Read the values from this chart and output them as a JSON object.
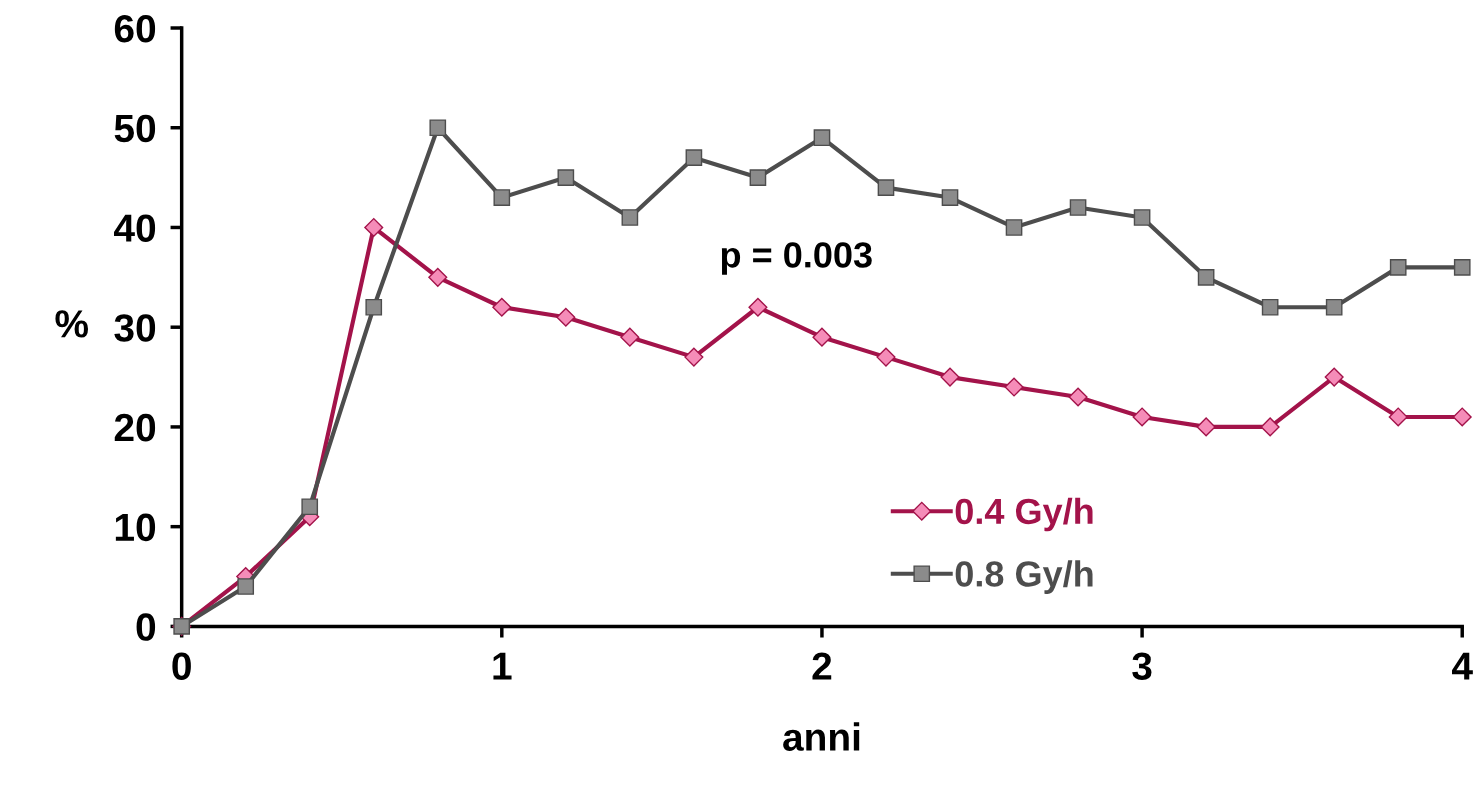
{
  "chart_data": {
    "type": "line",
    "xlabel": "anni",
    "ylabel": "%",
    "x": [
      0,
      0.2,
      0.4,
      0.6,
      0.8,
      1.0,
      1.2,
      1.4,
      1.6,
      1.8,
      2.0,
      2.2,
      2.4,
      2.6,
      2.8,
      3.0,
      3.2,
      3.4,
      3.6,
      3.8,
      4.0
    ],
    "series": [
      {
        "name": "0.4 Gy/h",
        "color": "#a3134a",
        "marker": "diamond",
        "values": [
          0,
          5,
          11,
          40,
          35,
          32,
          31,
          29,
          27,
          32,
          29,
          27,
          25,
          24,
          23,
          21,
          20,
          20,
          25,
          21,
          21
        ]
      },
      {
        "name": "0.8 Gy/h",
        "color": "#4d4d4d",
        "marker": "square",
        "values": [
          0,
          4,
          12,
          32,
          50,
          43,
          45,
          41,
          47,
          45,
          49,
          44,
          43,
          40,
          42,
          41,
          35,
          32,
          32,
          36,
          36
        ]
      }
    ],
    "xlim": [
      0,
      4
    ],
    "xticks": [
      0,
      1,
      2,
      3,
      4
    ],
    "ylim": [
      0,
      60
    ],
    "yticks": [
      0,
      10,
      20,
      30,
      40,
      50,
      60
    ],
    "annotations": [
      "p = 0.003"
    ],
    "legend": "bottom right",
    "grid": false,
    "line_style": "solid"
  }
}
